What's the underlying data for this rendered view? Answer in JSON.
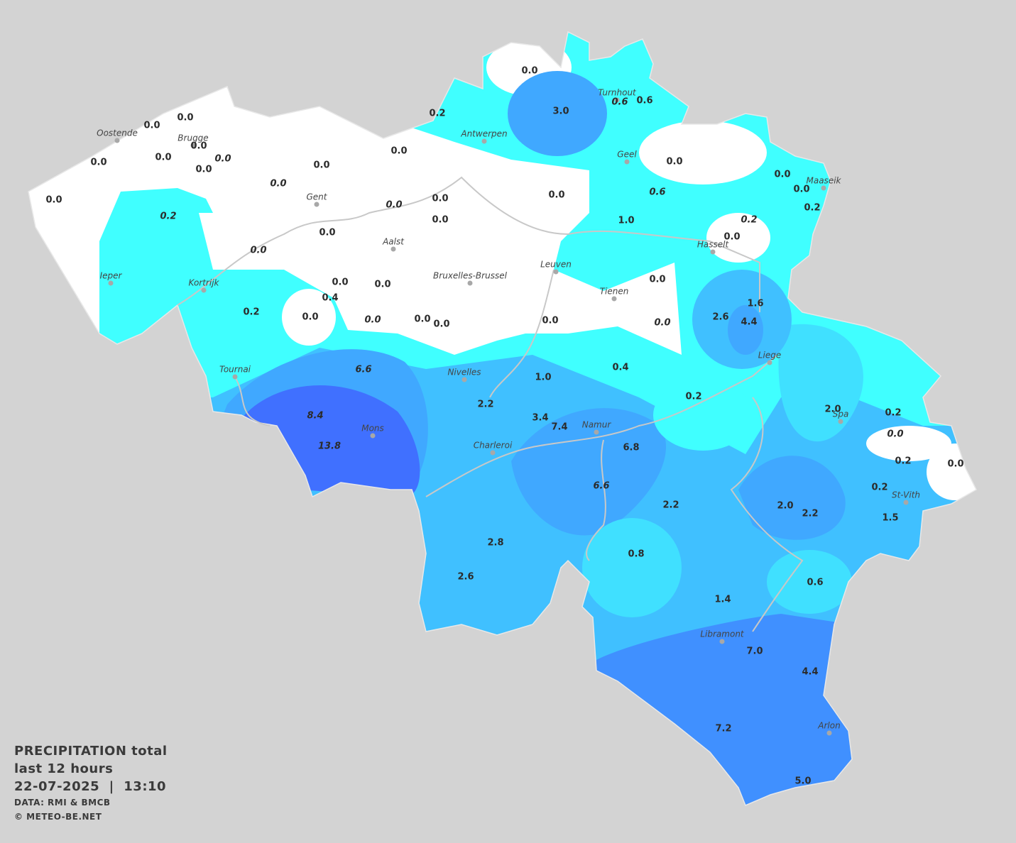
{
  "map": {
    "cities": [
      "Oostende",
      "Brugge",
      "Gent",
      "Antwerpen",
      "Turnhout",
      "Geel",
      "Maaseik",
      "Hasselt",
      "Aalst",
      "Leuven",
      "Bruxelles-Brussel",
      "Tienen",
      "Ieper",
      "Kortrijk",
      "Tournai",
      "Nivelles",
      "Liege",
      "Spa",
      "Mons",
      "Namur",
      "Charleroi",
      "St-Vith",
      "Libramont",
      "Arlon"
    ],
    "stations": [
      {
        "value": "0.0"
      },
      {
        "value": "3.0"
      },
      {
        "value": "0.6",
        "italic": true
      },
      {
        "value": "0.6"
      },
      {
        "value": "0.2"
      },
      {
        "value": "0.0"
      },
      {
        "value": "0.0"
      },
      {
        "value": "0.0"
      },
      {
        "value": "0.0"
      },
      {
        "value": "0.0"
      },
      {
        "value": "0.0"
      },
      {
        "value": "0.0",
        "italic": true
      },
      {
        "value": "0.0"
      },
      {
        "value": "0.0"
      },
      {
        "value": "0.0"
      },
      {
        "value": "0.0",
        "italic": true
      },
      {
        "value": "0.0"
      },
      {
        "value": "0.0"
      },
      {
        "value": "0.2"
      },
      {
        "value": "0.0"
      },
      {
        "value": "0.2",
        "italic": true
      },
      {
        "value": "0.0"
      },
      {
        "value": "0.0",
        "italic": true
      },
      {
        "value": "0.0"
      },
      {
        "value": "0.0"
      },
      {
        "value": "0.6",
        "italic": true
      },
      {
        "value": "1.0"
      },
      {
        "value": "0.2",
        "italic": true
      },
      {
        "value": "0.0"
      },
      {
        "value": "0.0"
      },
      {
        "value": "0.0",
        "italic": true
      },
      {
        "value": "0.0"
      },
      {
        "value": "0.0"
      },
      {
        "value": "0.4"
      },
      {
        "value": "0.0"
      },
      {
        "value": "0.2"
      },
      {
        "value": "0.0"
      },
      {
        "value": "0.0",
        "italic": true
      },
      {
        "value": "0.0"
      },
      {
        "value": "0.0"
      },
      {
        "value": "0.0"
      },
      {
        "value": "0.0",
        "italic": true
      },
      {
        "value": "1.6"
      },
      {
        "value": "2.6"
      },
      {
        "value": "4.4"
      },
      {
        "value": "6.6",
        "italic": true
      },
      {
        "value": "1.0"
      },
      {
        "value": "0.4"
      },
      {
        "value": "0.2"
      },
      {
        "value": "2.2"
      },
      {
        "value": "2.0"
      },
      {
        "value": "0.2"
      },
      {
        "value": "0.0",
        "italic": true
      },
      {
        "value": "8.4",
        "italic": true
      },
      {
        "value": "3.4"
      },
      {
        "value": "7.4"
      },
      {
        "value": "13.8",
        "italic": true
      },
      {
        "value": "6.8"
      },
      {
        "value": "0.2"
      },
      {
        "value": "0.0"
      },
      {
        "value": "6.6",
        "italic": true
      },
      {
        "value": "2.2"
      },
      {
        "value": "2.0"
      },
      {
        "value": "2.2"
      },
      {
        "value": "0.2"
      },
      {
        "value": "1.5"
      },
      {
        "value": "2.8"
      },
      {
        "value": "0.8"
      },
      {
        "value": "2.6"
      },
      {
        "value": "0.6"
      },
      {
        "value": "1.4"
      },
      {
        "value": "7.0"
      },
      {
        "value": "4.4"
      },
      {
        "value": "7.2"
      },
      {
        "value": "5.0"
      }
    ]
  },
  "legend": {
    "title": "PRECIPITATION total",
    "period": "last 12 hours",
    "datetime": "22-07-2025  |  13:10",
    "source": "DATA: RMI & BMCB",
    "credit": "© METEO-BE.NET"
  }
}
